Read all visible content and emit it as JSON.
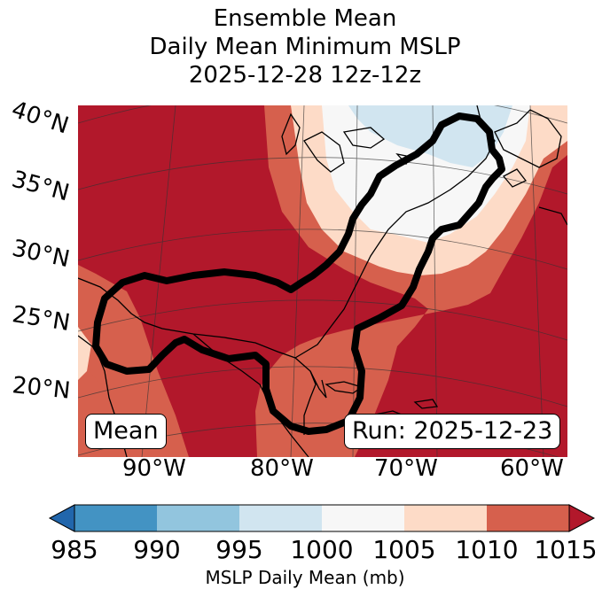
{
  "title": {
    "line1": "Ensemble Mean",
    "line2": "Daily Mean Minimum MSLP",
    "line3": "2025-12-28 12z-12z"
  },
  "map": {
    "latitude_labels": [
      "40°N",
      "35°N",
      "30°N",
      "25°N",
      "20°N"
    ],
    "longitude_labels": [
      "90°W",
      "80°W",
      "70°W",
      "60°W"
    ],
    "mode_label": "Mean",
    "run_label": "Run: 2025-12-23",
    "contour_color": "#000000"
  },
  "colorbar": {
    "label": "MSLP Daily Mean (mb)",
    "ticks": [
      "985",
      "990",
      "995",
      "1000",
      "1005",
      "1010",
      "1015"
    ],
    "colors": [
      "#4393c3",
      "#92c5de",
      "#d1e5f0",
      "#f7f7f7",
      "#fddbc7",
      "#d6604d",
      "#b2182b"
    ],
    "under_color": "#2166ac",
    "over_color": "#b2182b"
  }
}
